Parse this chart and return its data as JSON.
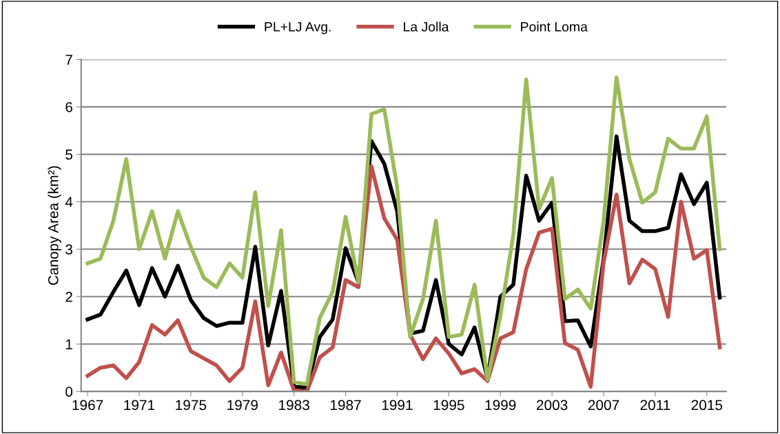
{
  "chart_data": {
    "type": "line",
    "ylabel": "Canopy Area (km²)",
    "x": [
      1967,
      1968,
      1969,
      1970,
      1971,
      1972,
      1973,
      1974,
      1975,
      1976,
      1977,
      1978,
      1979,
      1980,
      1981,
      1982,
      1983,
      1984,
      1985,
      1986,
      1987,
      1988,
      1989,
      1990,
      1991,
      1992,
      1993,
      1994,
      1995,
      1996,
      1997,
      1998,
      1999,
      2000,
      2001,
      2002,
      2003,
      2004,
      2005,
      2006,
      2007,
      2008,
      2009,
      2010,
      2011,
      2012,
      2013,
      2014,
      2015,
      2016
    ],
    "xlim": [
      1966.5,
      2016.5
    ],
    "xticks": [
      1967,
      1971,
      1975,
      1979,
      1983,
      1987,
      1991,
      1995,
      1999,
      2003,
      2007,
      2011,
      2015
    ],
    "ylim": [
      0,
      7
    ],
    "yticks": [
      0,
      1,
      2,
      3,
      4,
      5,
      6,
      7
    ],
    "grid": "y",
    "legend": "top",
    "marker": "none",
    "line_style": "solid",
    "series": [
      {
        "name": "PL+LJ Avg.",
        "color": "#000000",
        "values": [
          1.52,
          1.62,
          2.1,
          2.55,
          1.82,
          2.6,
          2.0,
          2.65,
          1.93,
          1.55,
          1.38,
          1.45,
          1.45,
          3.05,
          0.97,
          2.12,
          0.1,
          0.08,
          1.15,
          1.52,
          3.02,
          2.3,
          5.28,
          4.8,
          3.8,
          1.22,
          1.28,
          2.35,
          1.0,
          0.78,
          1.35,
          0.28,
          2.0,
          2.25,
          4.55,
          3.6,
          3.98,
          1.48,
          1.5,
          0.95,
          2.8,
          5.38,
          3.6,
          3.38,
          3.38,
          3.45,
          4.58,
          3.95,
          4.4,
          1.98
        ]
      },
      {
        "name": "La Jolla",
        "color": "#c0504d",
        "values": [
          0.33,
          0.5,
          0.55,
          0.28,
          0.62,
          1.4,
          1.2,
          1.5,
          0.85,
          0.7,
          0.55,
          0.22,
          0.5,
          1.9,
          0.13,
          0.82,
          0.02,
          0.0,
          0.72,
          0.93,
          2.35,
          2.2,
          4.75,
          3.65,
          3.2,
          1.2,
          0.68,
          1.12,
          0.8,
          0.38,
          0.47,
          0.22,
          1.12,
          1.25,
          2.58,
          3.35,
          3.43,
          1.02,
          0.88,
          0.1,
          2.72,
          4.15,
          2.28,
          2.78,
          2.58,
          1.57,
          4.0,
          2.8,
          2.98,
          0.93
        ]
      },
      {
        "name": "Point Loma",
        "color": "#9bbb59",
        "values": [
          2.7,
          2.8,
          3.6,
          4.9,
          3.0,
          3.8,
          2.8,
          3.8,
          3.05,
          2.4,
          2.2,
          2.7,
          2.4,
          4.2,
          1.8,
          3.4,
          0.2,
          0.15,
          1.55,
          2.1,
          3.68,
          2.3,
          5.85,
          5.95,
          4.3,
          1.15,
          1.95,
          3.6,
          1.15,
          1.2,
          2.25,
          0.25,
          1.6,
          3.3,
          6.58,
          3.85,
          4.5,
          1.95,
          2.15,
          1.75,
          3.6,
          6.62,
          4.9,
          3.98,
          4.2,
          5.33,
          5.12,
          5.12,
          5.8,
          3.0
        ]
      }
    ]
  }
}
